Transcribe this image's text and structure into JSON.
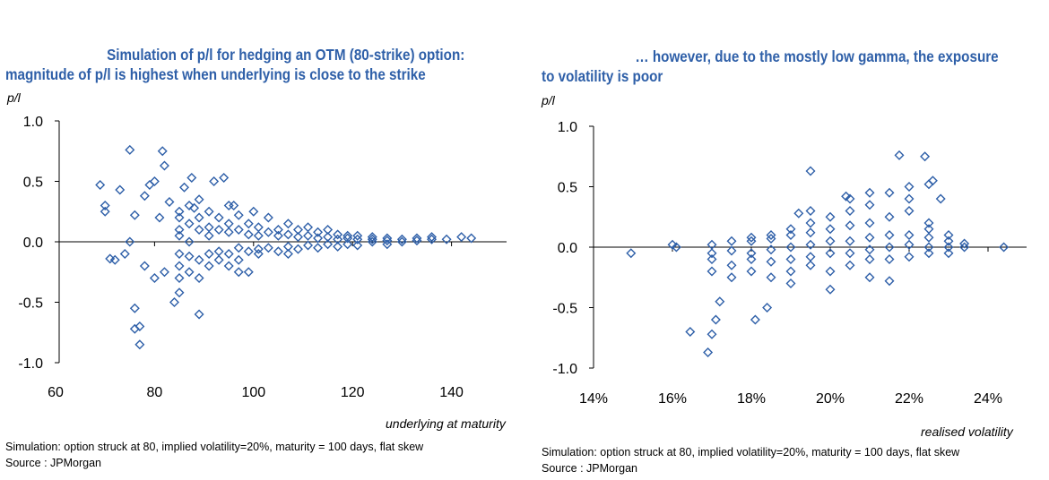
{
  "chart_data": [
    {
      "type": "scatter",
      "title_line1": "Simulation of p/l for hedging an OTM (80-strike) option:",
      "title_line2": "magnitude of p/l is highest when underlying is close to the strike",
      "ylabel": "p/l",
      "xlabel": "underlying at maturity",
      "xlim": [
        60,
        150
      ],
      "ylim": [
        -1.0,
        1.0
      ],
      "xticks": [
        "60",
        "80",
        "100",
        "120",
        "140"
      ],
      "xtick_values": [
        60,
        80,
        100,
        120,
        140
      ],
      "yticks": [
        "1.0",
        "0.5",
        "0.0",
        "-0.5",
        "-1.0"
      ],
      "ytick_values": [
        1.0,
        0.5,
        0.0,
        -0.5,
        -1.0
      ],
      "marker_color": "#2e5fa8",
      "note": "Simulation: option struck at 80, implied volatility=20%, maturity = 100 days, flat skew",
      "source": "Source : JPMorgan",
      "points": [
        [
          69,
          0.47
        ],
        [
          70,
          0.3
        ],
        [
          70,
          0.25
        ],
        [
          71,
          -0.14
        ],
        [
          72,
          -0.15
        ],
        [
          73,
          0.43
        ],
        [
          74,
          -0.1
        ],
        [
          75,
          0.76
        ],
        [
          75,
          0
        ],
        [
          76,
          -0.55
        ],
        [
          76,
          -0.72
        ],
        [
          77,
          -0.85
        ],
        [
          77,
          -0.7
        ],
        [
          78,
          0.38
        ],
        [
          79,
          0.47
        ],
        [
          80,
          0.5
        ],
        [
          81,
          0.2
        ],
        [
          81.6,
          0.75
        ],
        [
          82,
          0.63
        ],
        [
          83,
          0.33
        ],
        [
          84,
          -0.5
        ],
        [
          85,
          -0.42
        ],
        [
          86,
          0.45
        ],
        [
          87.5,
          0.53
        ],
        [
          88,
          0.28
        ],
        [
          89,
          -0.6
        ],
        [
          80,
          -0.3
        ],
        [
          82,
          -0.25
        ],
        [
          78,
          -0.2
        ],
        [
          76,
          0.22
        ],
        [
          94,
          0.53
        ],
        [
          92,
          0.5
        ],
        [
          96,
          0.3
        ],
        [
          100,
          0.25
        ],
        [
          97,
          -0.25
        ],
        [
          85,
          0.1
        ],
        [
          85,
          -0.1
        ],
        [
          85,
          0.2
        ],
        [
          85,
          -0.2
        ],
        [
          85,
          0.05
        ],
        [
          85,
          -0.3
        ],
        [
          85,
          0.25
        ],
        [
          87,
          0.15
        ],
        [
          87,
          -0.12
        ],
        [
          87,
          0.3
        ],
        [
          87,
          -0.25
        ],
        [
          87,
          0
        ],
        [
          89,
          0.2
        ],
        [
          89,
          -0.15
        ],
        [
          89,
          0.1
        ],
        [
          89,
          0.35
        ],
        [
          89,
          -0.3
        ],
        [
          91,
          0.12
        ],
        [
          91,
          -0.1
        ],
        [
          91,
          0.25
        ],
        [
          91,
          -0.2
        ],
        [
          91,
          0.05
        ],
        [
          93,
          0.1
        ],
        [
          93,
          -0.08
        ],
        [
          93,
          0.2
        ],
        [
          93,
          -0.15
        ],
        [
          95,
          0.08
        ],
        [
          95,
          -0.1
        ],
        [
          95,
          0.15
        ],
        [
          95,
          -0.2
        ],
        [
          95,
          0.3
        ],
        [
          97,
          0.1
        ],
        [
          97,
          -0.05
        ],
        [
          97,
          0.22
        ],
        [
          97,
          -0.15
        ],
        [
          99,
          0.06
        ],
        [
          99,
          -0.08
        ],
        [
          99,
          0.15
        ],
        [
          99,
          -0.25
        ],
        [
          101,
          0.05
        ],
        [
          101,
          -0.06
        ],
        [
          101,
          0.12
        ],
        [
          101,
          -0.1
        ],
        [
          103,
          0.08
        ],
        [
          103,
          -0.05
        ],
        [
          103,
          0.2
        ],
        [
          105,
          0.05
        ],
        [
          105,
          -0.08
        ],
        [
          105,
          0.1
        ],
        [
          107,
          0.06
        ],
        [
          107,
          -0.04
        ],
        [
          107,
          0.15
        ],
        [
          107,
          -0.1
        ],
        [
          109,
          0.04
        ],
        [
          109,
          -0.06
        ],
        [
          109,
          0.1
        ],
        [
          111,
          0.05
        ],
        [
          111,
          -0.03
        ],
        [
          111,
          0.12
        ],
        [
          113,
          0.03
        ],
        [
          113,
          -0.05
        ],
        [
          113,
          0.08
        ],
        [
          115,
          0.04
        ],
        [
          115,
          -0.02
        ],
        [
          115,
          0.1
        ],
        [
          117,
          0.02
        ],
        [
          117,
          -0.04
        ],
        [
          117,
          0.06
        ],
        [
          119,
          0.03
        ],
        [
          119,
          -0.02
        ],
        [
          119,
          0.05
        ],
        [
          121,
          0.02
        ],
        [
          121,
          -0.03
        ],
        [
          121,
          0.05
        ],
        [
          124,
          0.02
        ],
        [
          124,
          0
        ],
        [
          124,
          0.04
        ],
        [
          127,
          0.01
        ],
        [
          127,
          0.03
        ],
        [
          127,
          -0.02
        ],
        [
          130,
          0.02
        ],
        [
          130,
          0
        ],
        [
          133,
          0.03
        ],
        [
          133,
          0.01
        ],
        [
          136,
          0.02
        ],
        [
          136,
          0.04
        ],
        [
          139,
          0.02
        ],
        [
          142,
          0.04
        ],
        [
          144,
          0.03
        ]
      ]
    },
    {
      "type": "scatter",
      "title_line1": "… however, due to the mostly low gamma, the exposure",
      "title_line2": "to volatility is poor",
      "ylabel": "p/l",
      "xlabel": "realised volatility",
      "xlim": [
        14,
        25
      ],
      "ylim": [
        -1.0,
        1.0
      ],
      "xticks": [
        "14%",
        "16%",
        "18%",
        "20%",
        "22%",
        "24%"
      ],
      "xtick_values": [
        14,
        16,
        18,
        20,
        22,
        24
      ],
      "yticks": [
        "1.0",
        "0.5",
        "0.0",
        "-0.5",
        "-1.0"
      ],
      "ytick_values": [
        1.0,
        0.5,
        0.0,
        -0.5,
        -1.0
      ],
      "marker_color": "#2e5fa8",
      "note": "Simulation: option struck at 80, implied volatility=20%, maturity = 100 days, flat skew",
      "source": "Source : JPMorgan",
      "points": [
        [
          14.95,
          -0.05
        ],
        [
          16,
          0.02
        ],
        [
          16.1,
          0
        ],
        [
          16.45,
          -0.7
        ],
        [
          16.9,
          -0.87
        ],
        [
          17.0,
          -0.72
        ],
        [
          17.1,
          -0.6
        ],
        [
          17.2,
          -0.45
        ],
        [
          18.1,
          -0.6
        ],
        [
          18.4,
          -0.5
        ],
        [
          19.5,
          0.63
        ],
        [
          21.75,
          0.76
        ],
        [
          22.4,
          0.75
        ],
        [
          22.6,
          0.55
        ],
        [
          22.5,
          0.52
        ],
        [
          22.8,
          0.4
        ],
        [
          24.4,
          0
        ],
        [
          19.2,
          0.28
        ],
        [
          20.4,
          0.42
        ],
        [
          21,
          0.45
        ],
        [
          17,
          -0.05
        ],
        [
          17,
          -0.1
        ],
        [
          17,
          0.02
        ],
        [
          17,
          -0.2
        ],
        [
          17.5,
          -0.03
        ],
        [
          17.5,
          -0.15
        ],
        [
          17.5,
          0.05
        ],
        [
          17.5,
          -0.25
        ],
        [
          18,
          -0.05
        ],
        [
          18,
          0.05
        ],
        [
          18,
          -0.1
        ],
        [
          18,
          -0.2
        ],
        [
          18,
          0.08
        ],
        [
          18.5,
          -0.02
        ],
        [
          18.5,
          0.07
        ],
        [
          18.5,
          -0.12
        ],
        [
          18.5,
          -0.25
        ],
        [
          18.5,
          0.1
        ],
        [
          19,
          0
        ],
        [
          19,
          0.1
        ],
        [
          19,
          -0.1
        ],
        [
          19,
          -0.3
        ],
        [
          19,
          0.15
        ],
        [
          19,
          -0.2
        ],
        [
          19.5,
          0.02
        ],
        [
          19.5,
          0.12
        ],
        [
          19.5,
          -0.08
        ],
        [
          19.5,
          0.2
        ],
        [
          19.5,
          -0.15
        ],
        [
          19.5,
          0.3
        ],
        [
          20,
          0.05
        ],
        [
          20,
          0.15
        ],
        [
          20,
          -0.05
        ],
        [
          20,
          0.25
        ],
        [
          20,
          -0.2
        ],
        [
          20,
          -0.35
        ],
        [
          20.5,
          0.05
        ],
        [
          20.5,
          0.18
        ],
        [
          20.5,
          -0.05
        ],
        [
          20.5,
          0.3
        ],
        [
          20.5,
          -0.15
        ],
        [
          20.5,
          0.4
        ],
        [
          21,
          0.08
        ],
        [
          21,
          0.2
        ],
        [
          21,
          -0.02
        ],
        [
          21,
          0.35
        ],
        [
          21,
          -0.1
        ],
        [
          21,
          -0.25
        ],
        [
          21.5,
          0.1
        ],
        [
          21.5,
          0.25
        ],
        [
          21.5,
          0
        ],
        [
          21.5,
          0.45
        ],
        [
          21.5,
          -0.1
        ],
        [
          21.5,
          -0.28
        ],
        [
          22,
          0.1
        ],
        [
          22,
          0.3
        ],
        [
          22,
          0.02
        ],
        [
          22,
          0.4
        ],
        [
          22,
          -0.08
        ],
        [
          22,
          0.5
        ],
        [
          22.5,
          0.08
        ],
        [
          22.5,
          0.2
        ],
        [
          22.5,
          0
        ],
        [
          22.5,
          0.15
        ],
        [
          22.5,
          -0.05
        ],
        [
          23,
          0.05
        ],
        [
          23,
          0.1
        ],
        [
          23,
          0
        ],
        [
          23,
          -0.05
        ],
        [
          23.4,
          0.03
        ],
        [
          23.4,
          0
        ]
      ]
    }
  ]
}
